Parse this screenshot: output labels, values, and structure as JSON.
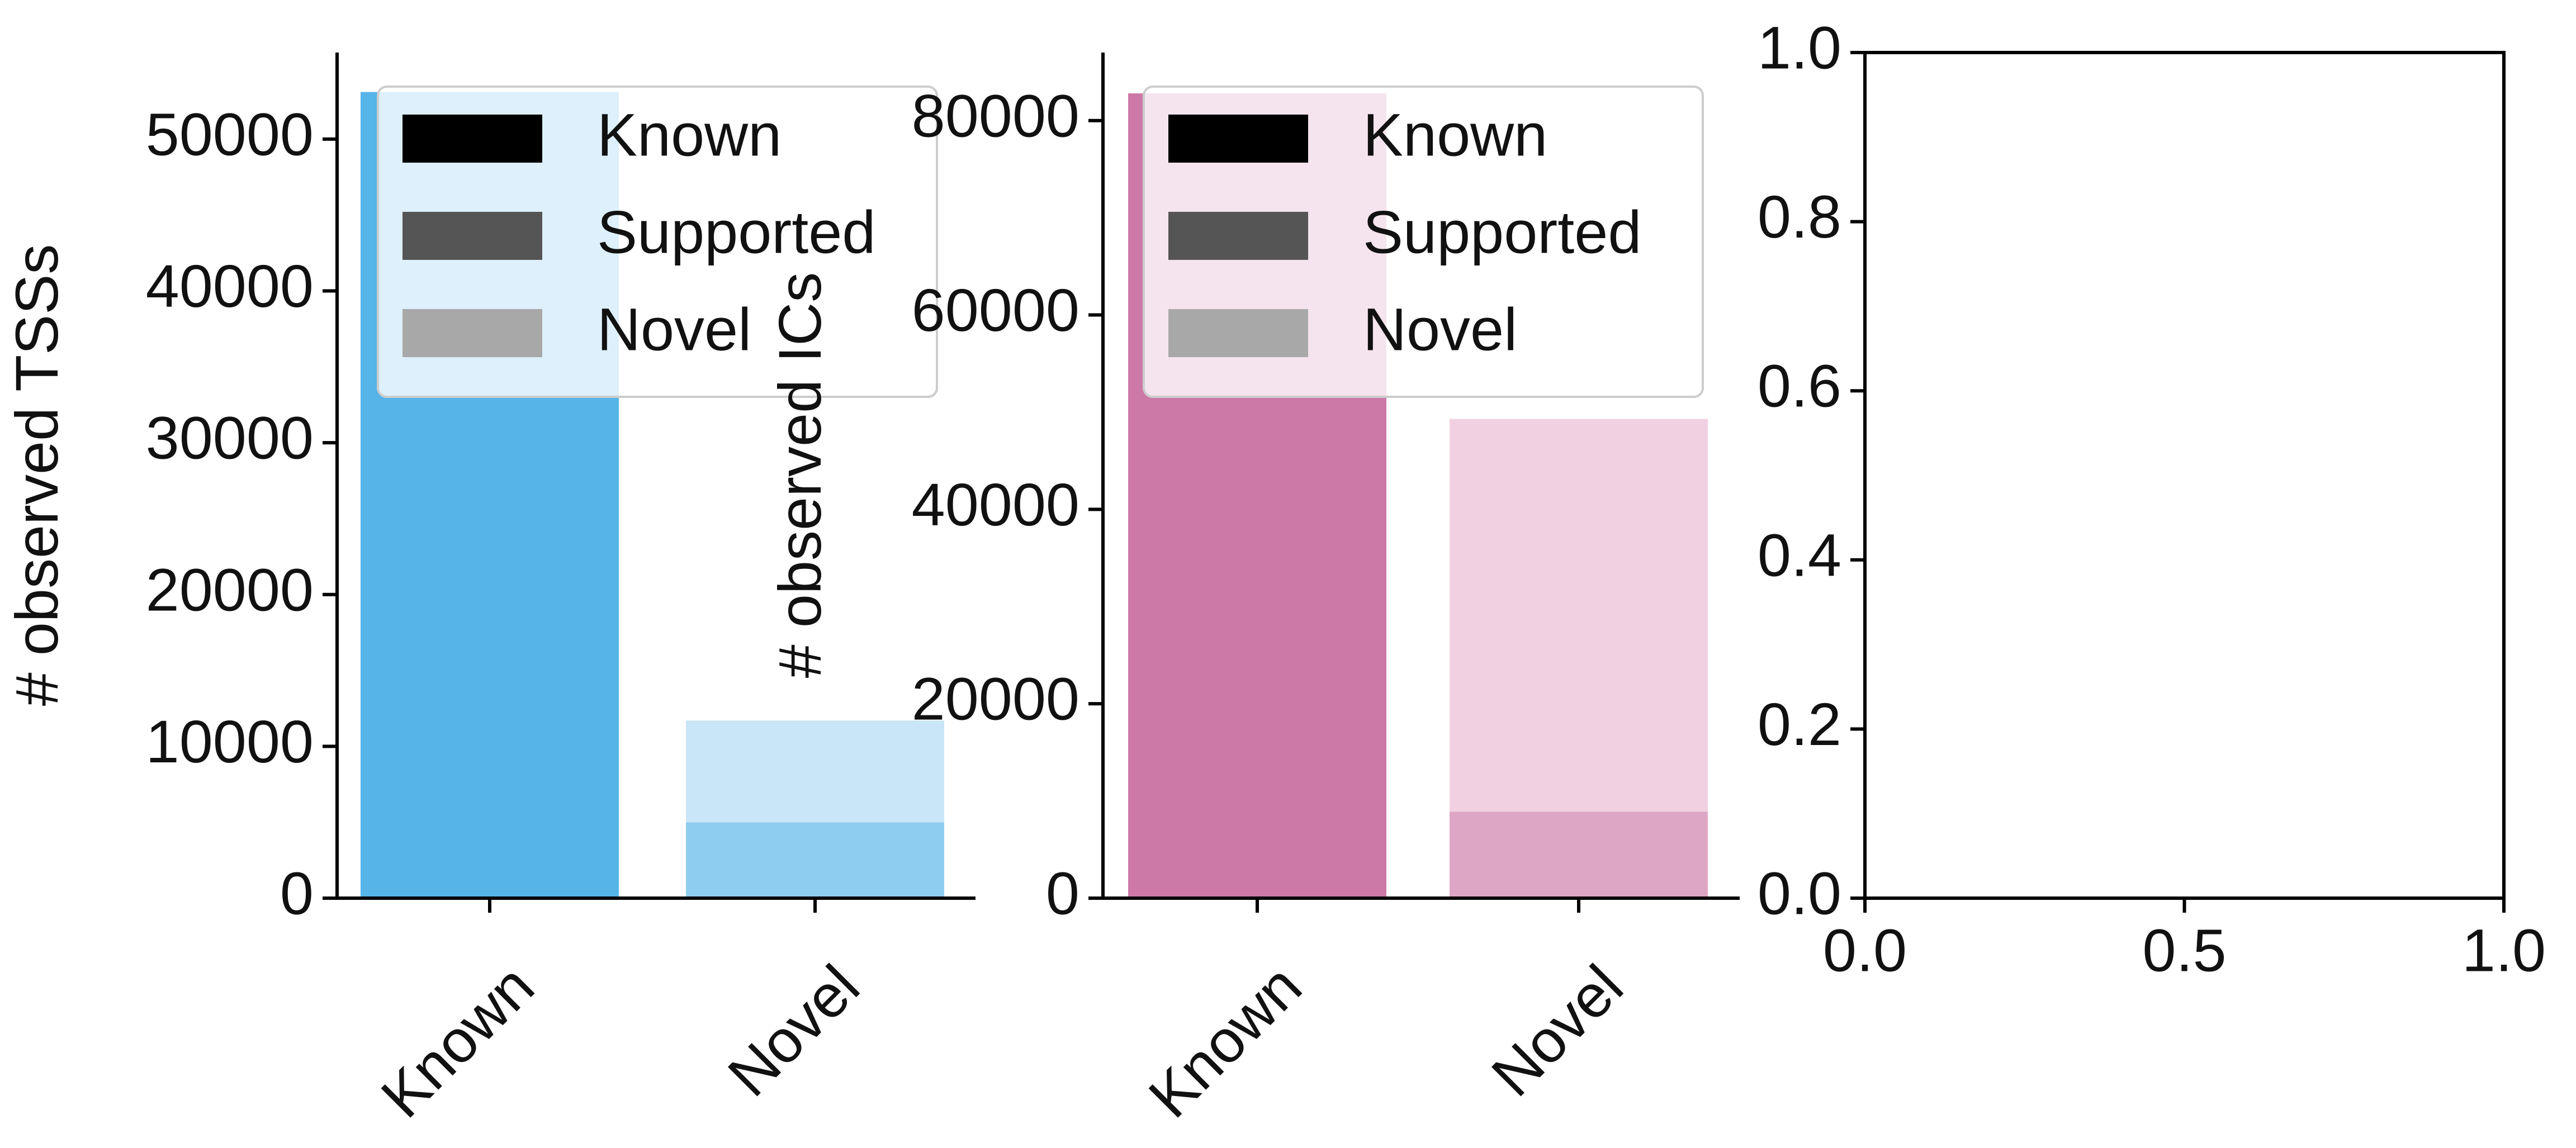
{
  "legend": {
    "entries": [
      {
        "label": "Known",
        "color": "#000000"
      },
      {
        "label": "Supported",
        "color": "#555555"
      },
      {
        "label": "Novel",
        "color": "#a8a8a8"
      }
    ]
  },
  "chart_data": [
    {
      "type": "bar",
      "stacked": true,
      "ylabel": "# observed TSSs",
      "categories": [
        "Known",
        "Novel"
      ],
      "ylim": [
        0,
        55700
      ],
      "yticks": [
        0,
        10000,
        20000,
        30000,
        40000,
        50000
      ],
      "series": [
        {
          "name": "Known",
          "values": [
            53100,
            0
          ],
          "colors": [
            "#56b4e9",
            "#56b4e9"
          ]
        },
        {
          "name": "Supported",
          "values": [
            0,
            5000
          ],
          "colors": [
            "#8fcdf0",
            "#8fcdf0"
          ]
        },
        {
          "name": "Novel",
          "values": [
            0,
            6700
          ],
          "colors": [
            "#c8e6f7",
            "#c8e6f7"
          ]
        }
      ],
      "legend_position": "upper left",
      "grid": false
    },
    {
      "type": "bar",
      "stacked": true,
      "ylabel": "# observed ICs",
      "categories": [
        "Known",
        "Novel"
      ],
      "ylim": [
        0,
        87000
      ],
      "yticks": [
        0,
        20000,
        40000,
        60000,
        80000
      ],
      "series": [
        {
          "name": "Known",
          "values": [
            82800,
            0
          ],
          "colors": [
            "#cc79a7",
            "#cc79a7"
          ]
        },
        {
          "name": "Supported",
          "values": [
            0,
            8900
          ],
          "colors": [
            "#dea6c5",
            "#dea6c5"
          ]
        },
        {
          "name": "Novel",
          "values": [
            0,
            40400
          ],
          "colors": [
            "#f0d0e1",
            "#f0d0e1"
          ]
        }
      ],
      "legend_position": "upper left",
      "grid": false
    },
    {
      "type": "empty",
      "xlim": [
        0,
        1
      ],
      "ylim": [
        0,
        1
      ],
      "xticks": [
        "0.0",
        "0.5",
        "1.0"
      ],
      "yticks": [
        "0.0",
        "0.2",
        "0.4",
        "0.6",
        "0.8",
        "1.0"
      ],
      "grid": false
    }
  ]
}
